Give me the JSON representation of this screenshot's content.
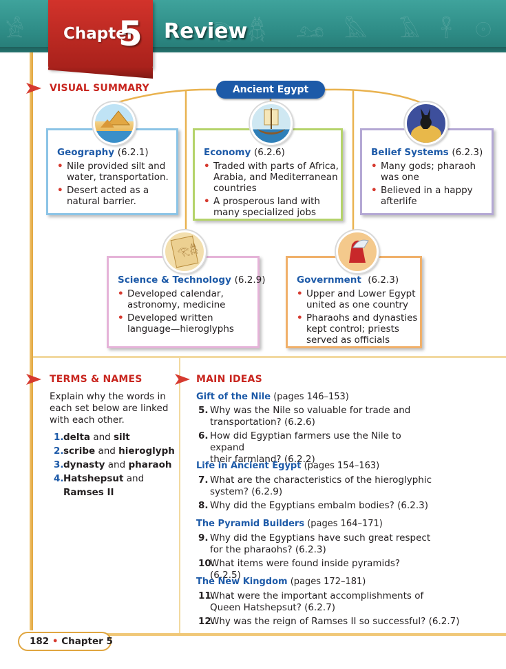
{
  "header": {
    "chapter_word": "Chapter",
    "chapter_number": "5",
    "review_word": "Review"
  },
  "visual_summary": {
    "heading": "VISUAL SUMMARY",
    "center_label": "Ancient Egypt",
    "boxes": {
      "geography": {
        "title": "Geography",
        "code": "(6.2.1)",
        "bullets": [
          "Nile provided silt and water, transportation.",
          "Desert acted as a natural barrier."
        ]
      },
      "economy": {
        "title": "Economy",
        "code": "(6.2.6)",
        "bullets": [
          "Traded with parts of Africa, Arabia, and Mediterranean countries",
          "A prosperous land with many specialized jobs"
        ]
      },
      "belief": {
        "title": "Belief Systems",
        "code": "(6.2.3)",
        "bullets": [
          "Many gods; pharaoh was one",
          "Believed in a happy afterlife"
        ]
      },
      "science": {
        "title": "Science & Technology",
        "code": "(6.2.9)",
        "bullets": [
          "Developed calendar, astronomy, medicine",
          "Developed written language—hieroglyphs"
        ]
      },
      "government": {
        "title": "Government",
        "code": "(6.2.3)",
        "bullets": [
          "Upper and Lower Egypt united as one country",
          "Pharaohs and dynasties kept control; priests served as officials"
        ]
      }
    },
    "colors": {
      "geography_border": "#8cc4e6",
      "economy_border": "#b5d36b",
      "belief_border": "#b4a8d4",
      "science_border": "#e5b3d8",
      "government_border": "#f0b06a"
    }
  },
  "terms": {
    "heading": "TERMS & NAMES",
    "intro": "Explain why the words in each set below are linked with each other.",
    "items": [
      {
        "num": "1.",
        "a": "delta",
        "joiner": "and",
        "b": "silt"
      },
      {
        "num": "2.",
        "a": "scribe",
        "joiner": "and",
        "b": "hieroglyph"
      },
      {
        "num": "3.",
        "a": "dynasty",
        "joiner": "and",
        "b": "pharaoh"
      },
      {
        "num": "4.",
        "a": "Hatshepsut",
        "joiner": "and",
        "b": "Ramses II"
      }
    ]
  },
  "main_ideas": {
    "heading": "MAIN IDEAS",
    "sections": [
      {
        "title": "Gift of the Nile",
        "pages": "(pages 146–153)",
        "questions": [
          {
            "num": "5.",
            "lines": [
              "Why was the Nile so valuable for trade and",
              "transportation? (6.2.6)"
            ]
          },
          {
            "num": "6.",
            "lines": [
              "How did Egyptian farmers use the Nile to expand",
              "their farmland? (6.2.2)"
            ]
          }
        ]
      },
      {
        "title": "Life in Ancient Egypt",
        "pages": "(pages 154–163)",
        "questions": [
          {
            "num": "7.",
            "lines": [
              "What are the characteristics of the hieroglyphic",
              "system? (6.2.9)"
            ]
          },
          {
            "num": "8.",
            "lines": [
              "Why did the Egyptians embalm bodies? (6.2.3)"
            ]
          }
        ]
      },
      {
        "title": "The Pyramid Builders",
        "pages": "(pages 164–171)",
        "questions": [
          {
            "num": "9.",
            "lines": [
              "Why did the Egyptians have such great respect",
              "for the pharaohs? (6.2.3)"
            ]
          },
          {
            "num": "10.",
            "lines": [
              "What items were found inside pyramids? (6.2.5)"
            ]
          }
        ]
      },
      {
        "title": "The New Kingdom",
        "pages": "(pages 172–181)",
        "questions": [
          {
            "num": "11.",
            "lines": [
              "What were the important accomplishments of",
              "Queen Hatshepsut? (6.2.7)"
            ]
          },
          {
            "num": "12.",
            "lines": [
              "Why was the reign of Ramses II so successful? (6.2.7)"
            ]
          }
        ]
      }
    ]
  },
  "footer": {
    "page": "182",
    "separator": "•",
    "chapter": "Chapter 5"
  }
}
